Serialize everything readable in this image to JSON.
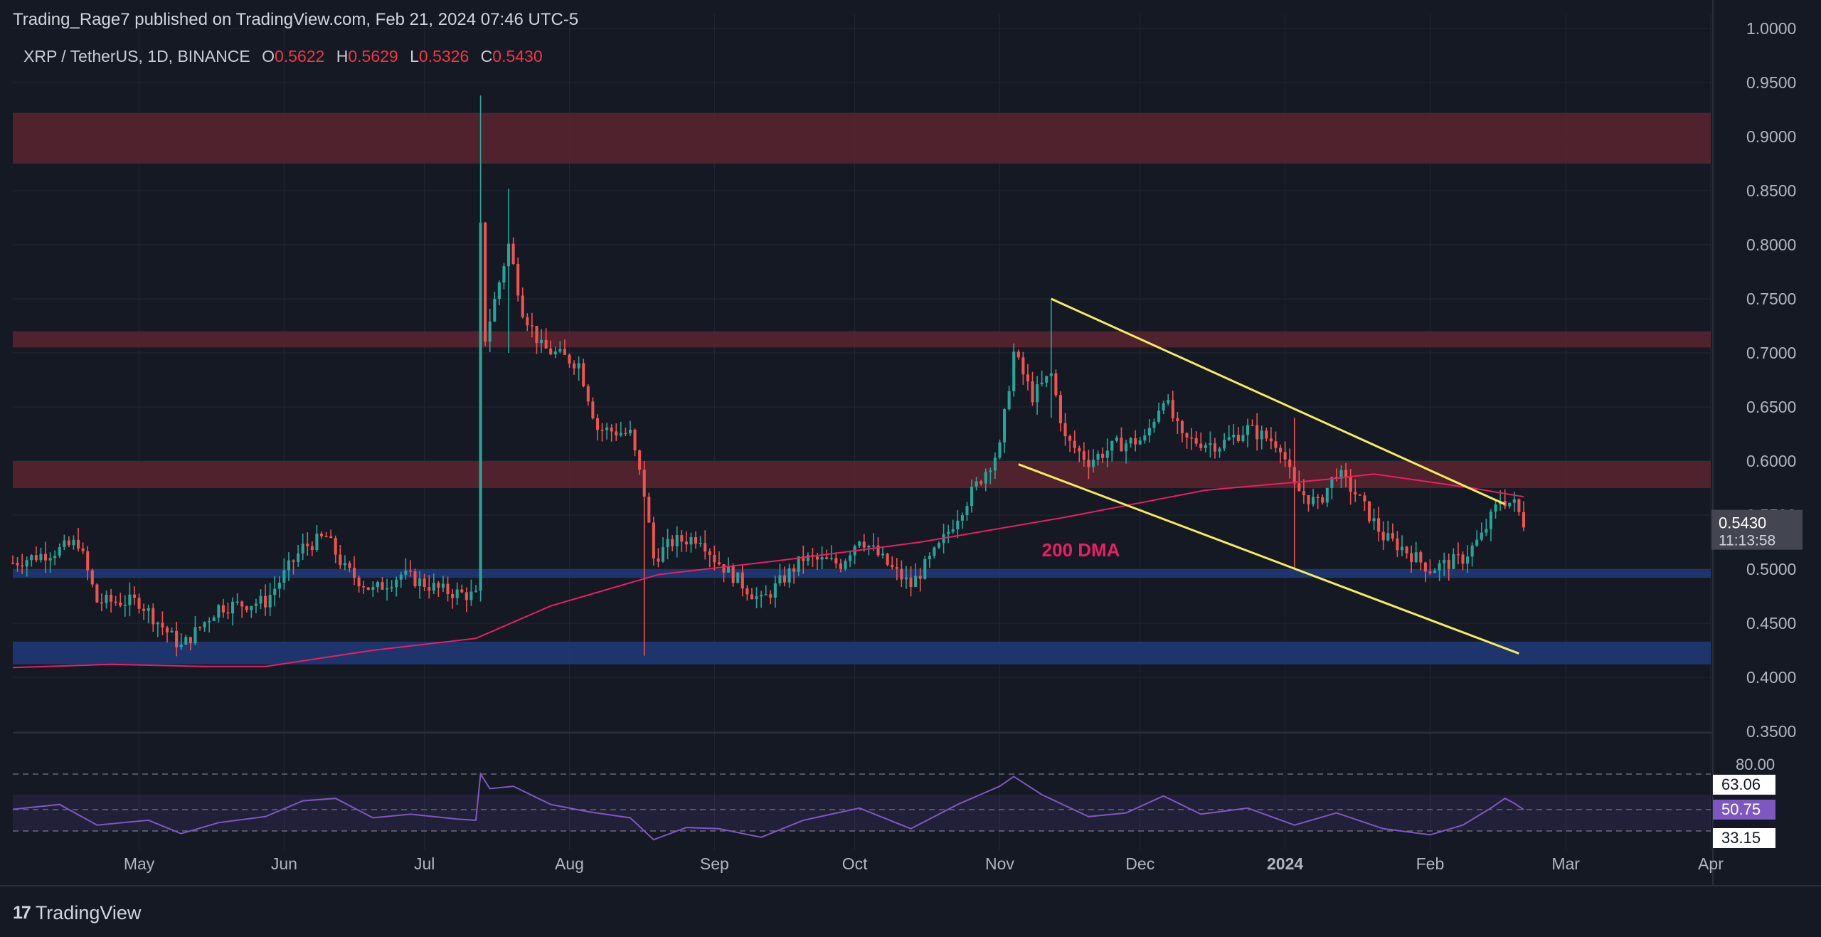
{
  "header": {
    "published": "Trading_Rage7 published on TradingView.com, Feb 21, 2024 07:46 UTC-5"
  },
  "legend": {
    "symbol": "XRP / TetherUS, 1D, BINANCE",
    "o_label": "O",
    "o": "0.5622",
    "h_label": "H",
    "h": "0.5629",
    "l_label": "L",
    "l": "0.5326",
    "c_label": "C",
    "c": "0.5430"
  },
  "footer": {
    "brand": "TradingView",
    "logo_mark": "17"
  },
  "colors": {
    "bg": "#151924",
    "up": "#26a69a",
    "down": "#ef5350",
    "resistance": "#5a2530",
    "support": "#1f3a7a",
    "dma": "#e91e63",
    "channel": "#f5eb5b",
    "rsi": "#7e57c2"
  },
  "chart_data": {
    "type": "candlestick",
    "symbol": "XRP / TetherUS",
    "interval": "1D",
    "exchange": "BINANCE",
    "ylim": [
      0.35,
      1.0
    ],
    "y_ticks": [
      "1.0000",
      "0.9500",
      "0.9000",
      "0.8500",
      "0.8000",
      "0.7500",
      "0.7000",
      "0.6500",
      "0.6000",
      "0.5500",
      "0.5000",
      "0.4500",
      "0.4000",
      "0.3500"
    ],
    "x_ticks": [
      {
        "label": "May",
        "date": "2023-05-01"
      },
      {
        "label": "Jun",
        "date": "2023-06-01"
      },
      {
        "label": "Jul",
        "date": "2023-07-01"
      },
      {
        "label": "Aug",
        "date": "2023-08-01"
      },
      {
        "label": "Sep",
        "date": "2023-09-01"
      },
      {
        "label": "Oct",
        "date": "2023-10-01"
      },
      {
        "label": "Nov",
        "date": "2023-11-01"
      },
      {
        "label": "Dec",
        "date": "2023-12-01"
      },
      {
        "label": "2024",
        "date": "2024-01-01"
      },
      {
        "label": "Feb",
        "date": "2024-02-01"
      },
      {
        "label": "Mar",
        "date": "2024-03-01"
      },
      {
        "label": "Apr",
        "date": "2024-04-01"
      }
    ],
    "x_range": [
      "2023-04-04",
      "2024-04-01"
    ],
    "last_price": {
      "value": "0.5430",
      "countdown": "11:13:58"
    },
    "price_keypoints": [
      {
        "date": "2023-04-04",
        "close": 0.506
      },
      {
        "date": "2023-04-14",
        "close": 0.518
      },
      {
        "date": "2023-04-18",
        "close": 0.525
      },
      {
        "date": "2023-04-22",
        "close": 0.47
      },
      {
        "date": "2023-05-01",
        "close": 0.47
      },
      {
        "date": "2023-05-10",
        "close": 0.428
      },
      {
        "date": "2023-05-18",
        "close": 0.465
      },
      {
        "date": "2023-05-28",
        "close": 0.47
      },
      {
        "date": "2023-06-05",
        "close": 0.52
      },
      {
        "date": "2023-06-10",
        "close": 0.53
      },
      {
        "date": "2023-06-14",
        "close": 0.5
      },
      {
        "date": "2023-06-20",
        "close": 0.48
      },
      {
        "date": "2023-06-26",
        "close": 0.495
      },
      {
        "date": "2023-07-05",
        "close": 0.48
      },
      {
        "date": "2023-07-12",
        "close": 0.475
      },
      {
        "date": "2023-07-13",
        "close": 0.815
      },
      {
        "date": "2023-07-14",
        "close": 0.714
      },
      {
        "date": "2023-07-19",
        "close": 0.8
      },
      {
        "date": "2023-07-22",
        "close": 0.74
      },
      {
        "date": "2023-07-26",
        "close": 0.705
      },
      {
        "date": "2023-08-03",
        "close": 0.69
      },
      {
        "date": "2023-08-07",
        "close": 0.63
      },
      {
        "date": "2023-08-14",
        "close": 0.625
      },
      {
        "date": "2023-08-17",
        "close": 0.57
      },
      {
        "date": "2023-08-19",
        "close": 0.51
      },
      {
        "date": "2023-08-23",
        "close": 0.525
      },
      {
        "date": "2023-08-29",
        "close": 0.53
      },
      {
        "date": "2023-09-01",
        "close": 0.51
      },
      {
        "date": "2023-09-11",
        "close": 0.47
      },
      {
        "date": "2023-09-20",
        "close": 0.51
      },
      {
        "date": "2023-09-28",
        "close": 0.505
      },
      {
        "date": "2023-10-02",
        "close": 0.53
      },
      {
        "date": "2023-10-09",
        "close": 0.5
      },
      {
        "date": "2023-10-13",
        "close": 0.485
      },
      {
        "date": "2023-10-19",
        "close": 0.52
      },
      {
        "date": "2023-10-23",
        "close": 0.55
      },
      {
        "date": "2023-11-01",
        "close": 0.612
      },
      {
        "date": "2023-11-04",
        "close": 0.7
      },
      {
        "date": "2023-11-08",
        "close": 0.66
      },
      {
        "date": "2023-11-12",
        "close": 0.68
      },
      {
        "date": "2023-11-15",
        "close": 0.62
      },
      {
        "date": "2023-11-20",
        "close": 0.6
      },
      {
        "date": "2023-11-26",
        "close": 0.615
      },
      {
        "date": "2023-12-02",
        "close": 0.62
      },
      {
        "date": "2023-12-06",
        "close": 0.66
      },
      {
        "date": "2023-12-10",
        "close": 0.62
      },
      {
        "date": "2023-12-18",
        "close": 0.615
      },
      {
        "date": "2023-12-24",
        "close": 0.63
      },
      {
        "date": "2023-12-31",
        "close": 0.615
      },
      {
        "date": "2024-01-03",
        "close": 0.575
      },
      {
        "date": "2024-01-08",
        "close": 0.56
      },
      {
        "date": "2024-01-12",
        "close": 0.59
      },
      {
        "date": "2024-01-16",
        "close": 0.57
      },
      {
        "date": "2024-01-22",
        "close": 0.53
      },
      {
        "date": "2024-01-26",
        "close": 0.52
      },
      {
        "date": "2024-02-01",
        "close": 0.5
      },
      {
        "date": "2024-02-08",
        "close": 0.51
      },
      {
        "date": "2024-02-12",
        "close": 0.53
      },
      {
        "date": "2024-02-16",
        "close": 0.565
      },
      {
        "date": "2024-02-19",
        "close": 0.56
      },
      {
        "date": "2024-02-21",
        "close": 0.543
      }
    ],
    "zones": [
      {
        "kind": "resistance",
        "from": 0.875,
        "to": 0.922
      },
      {
        "kind": "resistance",
        "from": 0.705,
        "to": 0.72
      },
      {
        "kind": "resistance",
        "from": 0.575,
        "to": 0.6
      },
      {
        "kind": "support",
        "from": 0.492,
        "to": 0.5
      },
      {
        "kind": "support",
        "from": 0.412,
        "to": 0.433
      }
    ],
    "dma_200": {
      "label": "200 DMA",
      "points": [
        {
          "date": "2023-04-04",
          "value": 0.409
        },
        {
          "date": "2023-04-25",
          "value": 0.412
        },
        {
          "date": "2023-05-15",
          "value": 0.41
        },
        {
          "date": "2023-05-28",
          "value": 0.41
        },
        {
          "date": "2023-06-20",
          "value": 0.425
        },
        {
          "date": "2023-07-12",
          "value": 0.436
        },
        {
          "date": "2023-07-28",
          "value": 0.466
        },
        {
          "date": "2023-08-20",
          "value": 0.495
        },
        {
          "date": "2023-09-15",
          "value": 0.508
        },
        {
          "date": "2023-10-15",
          "value": 0.525
        },
        {
          "date": "2023-11-15",
          "value": 0.548
        },
        {
          "date": "2023-12-15",
          "value": 0.573
        },
        {
          "date": "2024-01-10",
          "value": 0.583
        },
        {
          "date": "2024-01-20",
          "value": 0.588
        },
        {
          "date": "2024-02-10",
          "value": 0.575
        },
        {
          "date": "2024-02-21",
          "value": 0.567
        }
      ]
    },
    "channel_lines": [
      {
        "from": {
          "date": "2023-11-12",
          "value": 0.75
        },
        "to": {
          "date": "2024-02-17",
          "value": 0.56
        }
      },
      {
        "from": {
          "date": "2023-11-05",
          "value": 0.597
        },
        "to": {
          "date": "2024-02-20",
          "value": 0.422
        }
      }
    ],
    "rsi": {
      "upper": "80.00",
      "levels": [
        "63.06",
        "50.75",
        "33.15"
      ],
      "current": 50.75,
      "points": [
        {
          "date": "2023-04-04",
          "value": 51
        },
        {
          "date": "2023-04-14",
          "value": 55
        },
        {
          "date": "2023-04-22",
          "value": 38
        },
        {
          "date": "2023-05-03",
          "value": 42
        },
        {
          "date": "2023-05-10",
          "value": 31
        },
        {
          "date": "2023-05-18",
          "value": 40
        },
        {
          "date": "2023-05-28",
          "value": 45
        },
        {
          "date": "2023-06-05",
          "value": 58
        },
        {
          "date": "2023-06-12",
          "value": 60
        },
        {
          "date": "2023-06-20",
          "value": 44
        },
        {
          "date": "2023-06-28",
          "value": 47
        },
        {
          "date": "2023-07-08",
          "value": 43
        },
        {
          "date": "2023-07-12",
          "value": 42
        },
        {
          "date": "2023-07-13",
          "value": 80
        },
        {
          "date": "2023-07-15",
          "value": 68
        },
        {
          "date": "2023-07-20",
          "value": 70
        },
        {
          "date": "2023-07-28",
          "value": 55
        },
        {
          "date": "2023-08-05",
          "value": 49
        },
        {
          "date": "2023-08-14",
          "value": 44
        },
        {
          "date": "2023-08-19",
          "value": 26
        },
        {
          "date": "2023-08-26",
          "value": 36
        },
        {
          "date": "2023-09-02",
          "value": 35
        },
        {
          "date": "2023-09-11",
          "value": 28
        },
        {
          "date": "2023-09-20",
          "value": 42
        },
        {
          "date": "2023-10-02",
          "value": 52
        },
        {
          "date": "2023-10-13",
          "value": 35
        },
        {
          "date": "2023-10-23",
          "value": 55
        },
        {
          "date": "2023-11-01",
          "value": 70
        },
        {
          "date": "2023-11-04",
          "value": 78
        },
        {
          "date": "2023-11-10",
          "value": 63
        },
        {
          "date": "2023-11-20",
          "value": 45
        },
        {
          "date": "2023-11-28",
          "value": 48
        },
        {
          "date": "2023-12-06",
          "value": 62
        },
        {
          "date": "2023-12-14",
          "value": 47
        },
        {
          "date": "2023-12-24",
          "value": 52
        },
        {
          "date": "2024-01-03",
          "value": 38
        },
        {
          "date": "2024-01-12",
          "value": 48
        },
        {
          "date": "2024-01-22",
          "value": 35
        },
        {
          "date": "2024-02-01",
          "value": 30
        },
        {
          "date": "2024-02-08",
          "value": 38
        },
        {
          "date": "2024-02-14",
          "value": 52
        },
        {
          "date": "2024-02-17",
          "value": 60
        },
        {
          "date": "2024-02-19",
          "value": 56
        },
        {
          "date": "2024-02-21",
          "value": 50.75
        }
      ]
    }
  }
}
